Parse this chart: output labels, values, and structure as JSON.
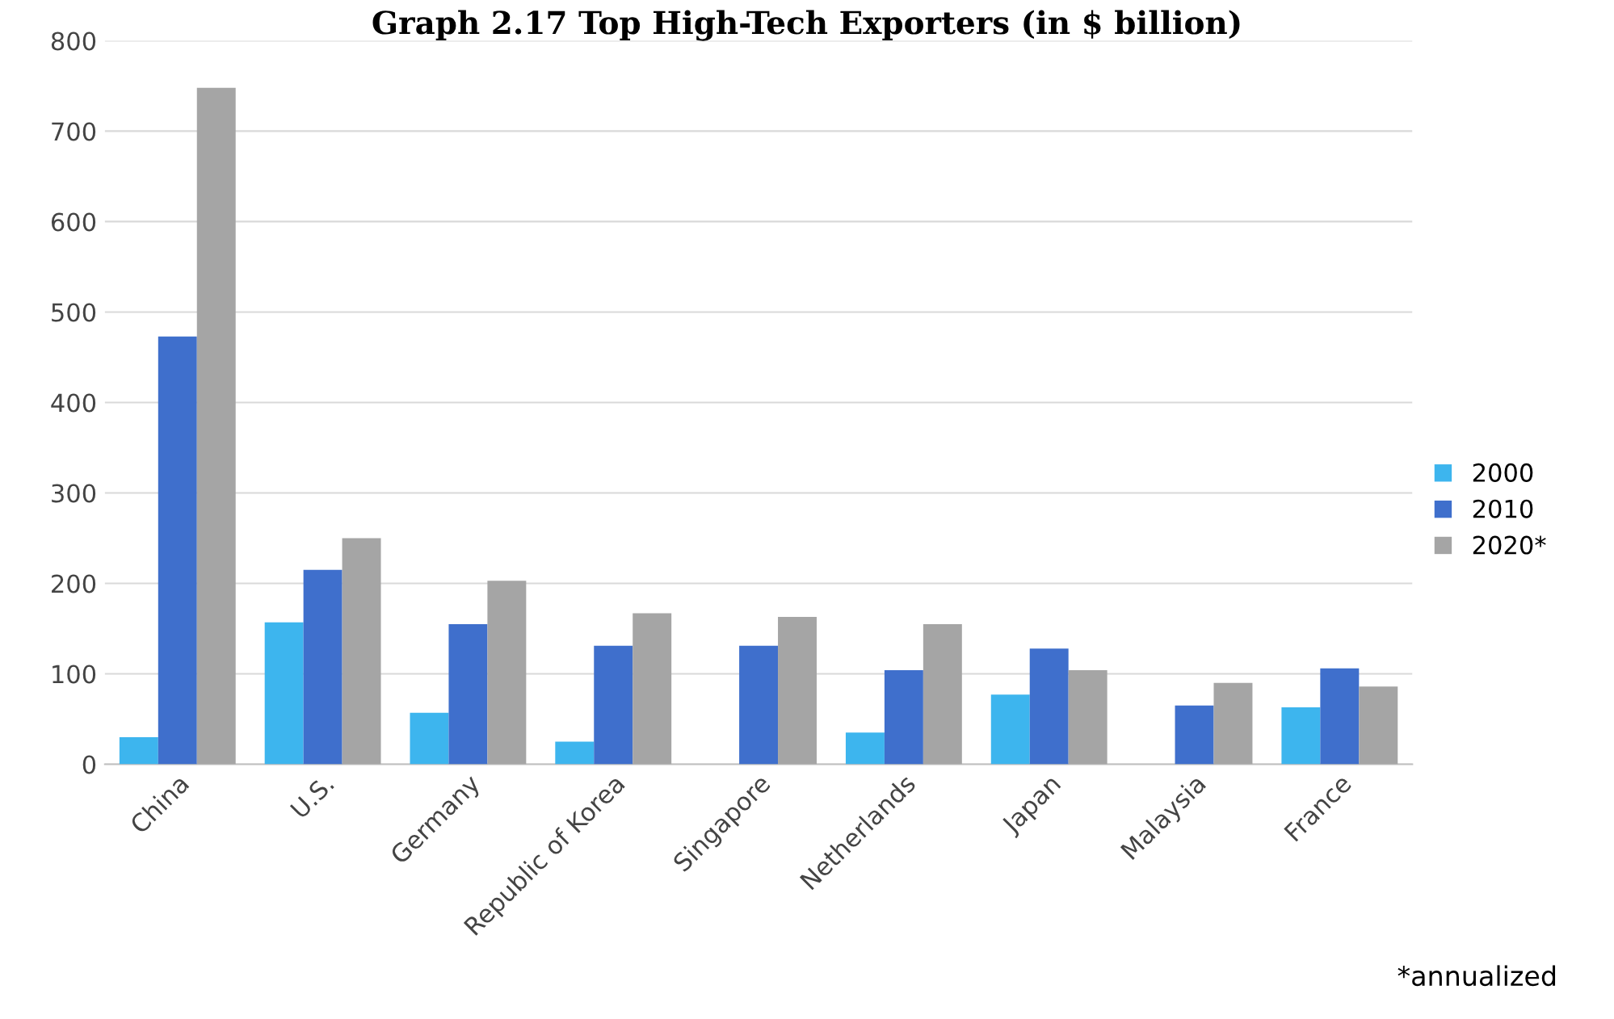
{
  "chart_data": {
    "type": "bar",
    "title": "Graph 2.17 Top High-Tech Exporters (in $ billion)",
    "categories": [
      "China",
      "U.S.",
      "Germany",
      "Republic of Korea",
      "Singapore",
      "Netherlands",
      "Japan",
      "Malaysia",
      "France"
    ],
    "series": [
      {
        "name": "2000",
        "color": "#3db5ee",
        "values": [
          30,
          157,
          57,
          25,
          null,
          35,
          77,
          null,
          63
        ]
      },
      {
        "name": "2010",
        "color": "#3f6fcc",
        "values": [
          473,
          215,
          155,
          131,
          131,
          104,
          128,
          65,
          106
        ]
      },
      {
        "name": "2020*",
        "color": "#a5a5a5",
        "values": [
          748,
          250,
          203,
          167,
          163,
          155,
          104,
          90,
          86
        ]
      }
    ],
    "ylim": [
      0,
      800
    ],
    "yticks": [
      0,
      100,
      200,
      300,
      400,
      500,
      600,
      700,
      800
    ],
    "grid": "y",
    "legend": "right",
    "annotations": [
      "*annualized"
    ]
  }
}
